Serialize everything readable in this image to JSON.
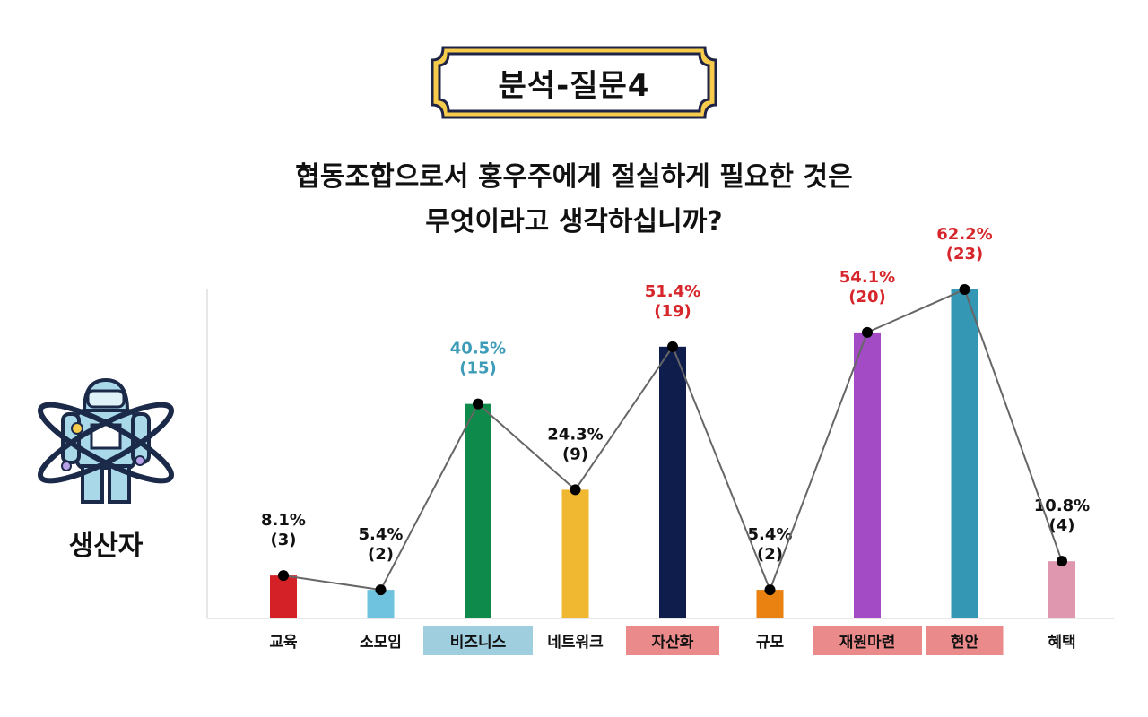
{
  "header": {
    "badge_title": "분석-질문4"
  },
  "question": {
    "line1": "협동조합으로서 홍우주에게 절실하게 필요한 것은",
    "line2": "무엇이라고 생각하십니까?"
  },
  "respondent": {
    "label": "생산자",
    "icon": "astronaut-orbit-icon"
  },
  "colors": {
    "badge_fill": "#f7cb4b",
    "badge_border": "#1f2447",
    "highlight_blue": "#9fcfdf",
    "highlight_pink": "#ea8a8a",
    "label_blue": "#3e9cb8",
    "label_red": "#d6262b",
    "label_black": "#111111"
  },
  "chart_data": {
    "type": "bar",
    "categories": [
      "교육",
      "소모임",
      "비즈니스",
      "네트워크",
      "자산화",
      "규모",
      "재원마련",
      "현안",
      "혜택"
    ],
    "values": [
      3,
      2,
      15,
      9,
      19,
      2,
      20,
      23,
      4
    ],
    "percents": [
      "8.1%",
      "5.4%",
      "40.5%",
      "24.3%",
      "51.4%",
      "5.4%",
      "54.1%",
      "62.2%",
      "10.8%"
    ],
    "counts": [
      "(3)",
      "(2)",
      "(15)",
      "(9)",
      "(19)",
      "(2)",
      "(20)",
      "(23)",
      "(4)"
    ],
    "bar_colors": [
      "#d42027",
      "#6fc3de",
      "#0e8a4a",
      "#f0b731",
      "#0f1d4d",
      "#e98210",
      "#a24bc4",
      "#3497b4",
      "#de97ae"
    ],
    "label_colors": [
      "#111111",
      "#111111",
      "#3e9cb8",
      "#111111",
      "#d6262b",
      "#111111",
      "#d6262b",
      "#d6262b",
      "#111111"
    ],
    "category_highlights": [
      "",
      "",
      "#9fcfdf",
      "",
      "#ea8a8a",
      "",
      "#ea8a8a",
      "#ea8a8a",
      ""
    ],
    "line_overlay": true,
    "ylim": [
      0,
      23
    ]
  }
}
